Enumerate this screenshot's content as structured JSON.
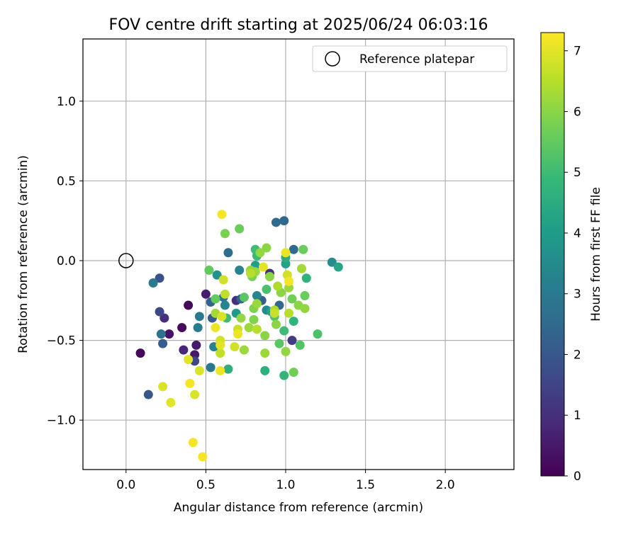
{
  "chart_data": {
    "type": "scatter",
    "title": "FOV centre drift starting at 2025/06/24 06:03:16",
    "xlabel": "Angular distance from reference (arcmin)",
    "ylabel": "Rotation from reference (arcmin)",
    "xlim": [
      -0.27,
      2.43
    ],
    "ylim": [
      -1.31,
      1.39
    ],
    "xticks": [
      "0.0",
      "0.5",
      "1.0",
      "1.5",
      "2.0"
    ],
    "xtick_values": [
      0.0,
      0.5,
      1.0,
      1.5,
      2.0
    ],
    "yticks": [
      "1.0",
      "0.5",
      "0.0",
      "−0.5",
      "−1.0"
    ],
    "ytick_values": [
      1.0,
      0.5,
      0.0,
      -0.5,
      -1.0
    ],
    "grid": true,
    "legend": {
      "label": "Reference platepar",
      "placement": "top-right"
    },
    "reference_point": {
      "x": 0.0,
      "y": 0.0
    },
    "colorbar": {
      "label": "Hours from first FF file",
      "range": [
        0,
        7.3
      ],
      "ticks": [
        "0",
        "1",
        "2",
        "3",
        "4",
        "5",
        "6",
        "7"
      ],
      "tick_values": [
        0,
        1,
        2,
        3,
        4,
        5,
        6,
        7
      ],
      "colormap": [
        "#440154",
        "#482878",
        "#3e4989",
        "#31688e",
        "#26828e",
        "#1f9e89",
        "#35b779",
        "#6ece58",
        "#b5de2b",
        "#fde725"
      ]
    },
    "series": [
      {
        "points": [
          {
            "x": 0.09,
            "y": -0.58,
            "t": 0.1
          },
          {
            "x": 0.39,
            "y": -0.28,
            "t": 0.1
          },
          {
            "x": 0.35,
            "y": -0.42,
            "t": 0.2
          },
          {
            "x": 0.27,
            "y": -0.46,
            "t": 0.4
          },
          {
            "x": 0.43,
            "y": -0.59,
            "t": 0.5
          },
          {
            "x": 0.44,
            "y": -0.53,
            "t": 0.5
          },
          {
            "x": 0.5,
            "y": -0.21,
            "t": 0.6
          },
          {
            "x": 0.36,
            "y": -0.56,
            "t": 0.8
          },
          {
            "x": 0.24,
            "y": -0.36,
            "t": 1.0
          },
          {
            "x": 0.69,
            "y": -0.25,
            "t": 1.0
          },
          {
            "x": 0.9,
            "y": -0.08,
            "t": 1.0
          },
          {
            "x": 1.04,
            "y": -0.5,
            "t": 1.3
          },
          {
            "x": 0.21,
            "y": -0.32,
            "t": 1.6
          },
          {
            "x": 0.43,
            "y": -0.63,
            "t": 1.6
          },
          {
            "x": 0.21,
            "y": -0.11,
            "t": 1.9
          },
          {
            "x": 0.14,
            "y": -0.84,
            "t": 2.0
          },
          {
            "x": 0.23,
            "y": -0.52,
            "t": 2.1
          },
          {
            "x": 0.54,
            "y": -0.36,
            "t": 2.1
          },
          {
            "x": 0.85,
            "y": -0.25,
            "t": 2.2
          },
          {
            "x": 0.53,
            "y": -0.26,
            "t": 2.3
          },
          {
            "x": 0.72,
            "y": -0.24,
            "t": 2.3
          },
          {
            "x": 0.96,
            "y": -0.28,
            "t": 2.4
          },
          {
            "x": 0.99,
            "y": 0.25,
            "t": 2.4
          },
          {
            "x": 1.05,
            "y": 0.07,
            "t": 2.5
          },
          {
            "x": 0.94,
            "y": 0.24,
            "t": 2.5
          },
          {
            "x": 0.64,
            "y": 0.05,
            "t": 2.6
          },
          {
            "x": 0.22,
            "y": -0.46,
            "t": 2.8
          },
          {
            "x": 0.61,
            "y": -0.23,
            "t": 2.8
          },
          {
            "x": 0.53,
            "y": -0.67,
            "t": 2.9
          },
          {
            "x": 0.17,
            "y": -0.14,
            "t": 3.0
          },
          {
            "x": 0.46,
            "y": -0.35,
            "t": 3.0
          },
          {
            "x": 0.45,
            "y": -0.42,
            "t": 3.1
          },
          {
            "x": 0.55,
            "y": -0.54,
            "t": 3.2
          },
          {
            "x": 0.62,
            "y": -0.28,
            "t": 3.3
          },
          {
            "x": 0.71,
            "y": -0.06,
            "t": 3.3
          },
          {
            "x": 0.82,
            "y": -0.22,
            "t": 3.4
          },
          {
            "x": 0.88,
            "y": -0.31,
            "t": 3.5
          },
          {
            "x": 1.29,
            "y": -0.01,
            "t": 3.6
          },
          {
            "x": 0.57,
            "y": -0.09,
            "t": 3.7
          },
          {
            "x": 0.69,
            "y": -0.33,
            "t": 4.0
          },
          {
            "x": 0.81,
            "y": -0.03,
            "t": 4.1
          },
          {
            "x": 0.91,
            "y": -0.32,
            "t": 4.2
          },
          {
            "x": 1.0,
            "y": -0.02,
            "t": 4.2
          },
          {
            "x": 1.33,
            "y": -0.04,
            "t": 4.3
          },
          {
            "x": 1.0,
            "y": 0.02,
            "t": 4.5
          },
          {
            "x": 0.64,
            "y": -0.68,
            "t": 4.6
          },
          {
            "x": 0.87,
            "y": -0.69,
            "t": 4.6
          },
          {
            "x": 1.05,
            "y": -0.38,
            "t": 4.7
          },
          {
            "x": 1.13,
            "y": -0.11,
            "t": 4.7
          },
          {
            "x": 0.99,
            "y": -0.72,
            "t": 4.8
          },
          {
            "x": 0.82,
            "y": 0.03,
            "t": 4.9
          },
          {
            "x": 0.81,
            "y": 0.07,
            "t": 5.0
          },
          {
            "x": 0.99,
            "y": -0.44,
            "t": 5.0
          },
          {
            "x": 0.63,
            "y": -0.36,
            "t": 5.0
          },
          {
            "x": 1.2,
            "y": -0.46,
            "t": 5.2
          },
          {
            "x": 0.88,
            "y": -0.18,
            "t": 5.2
          },
          {
            "x": 1.09,
            "y": -0.53,
            "t": 5.3
          },
          {
            "x": 0.93,
            "y": -0.35,
            "t": 5.3
          },
          {
            "x": 0.96,
            "y": -0.52,
            "t": 5.4
          },
          {
            "x": 0.74,
            "y": -0.23,
            "t": 5.4
          },
          {
            "x": 0.56,
            "y": -0.24,
            "t": 5.5
          },
          {
            "x": 0.52,
            "y": -0.06,
            "t": 5.5
          },
          {
            "x": 0.71,
            "y": 0.2,
            "t": 5.6
          },
          {
            "x": 1.11,
            "y": 0.07,
            "t": 5.6
          },
          {
            "x": 1.12,
            "y": -0.22,
            "t": 5.6
          },
          {
            "x": 1.04,
            "y": -0.24,
            "t": 5.7
          },
          {
            "x": 1.05,
            "y": -0.7,
            "t": 5.7
          },
          {
            "x": 0.62,
            "y": 0.17,
            "t": 5.8
          },
          {
            "x": 0.79,
            "y": -0.1,
            "t": 5.8
          },
          {
            "x": 0.8,
            "y": -0.3,
            "t": 5.9
          },
          {
            "x": 0.8,
            "y": -0.37,
            "t": 5.9
          },
          {
            "x": 0.88,
            "y": 0.08,
            "t": 6.0
          },
          {
            "x": 0.9,
            "y": -0.1,
            "t": 6.0
          },
          {
            "x": 0.97,
            "y": -0.2,
            "t": 6.0
          },
          {
            "x": 1.08,
            "y": -0.28,
            "t": 6.0
          },
          {
            "x": 0.87,
            "y": -0.47,
            "t": 6.0
          },
          {
            "x": 0.94,
            "y": -0.4,
            "t": 6.0
          },
          {
            "x": 0.84,
            "y": 0.05,
            "t": 6.1
          },
          {
            "x": 0.78,
            "y": -0.06,
            "t": 6.1
          },
          {
            "x": 0.72,
            "y": -0.36,
            "t": 6.1
          },
          {
            "x": 1.12,
            "y": -0.3,
            "t": 6.1
          },
          {
            "x": 1.0,
            "y": -0.57,
            "t": 6.1
          },
          {
            "x": 0.81,
            "y": -0.07,
            "t": 6.2
          },
          {
            "x": 0.82,
            "y": -0.27,
            "t": 6.2
          },
          {
            "x": 0.77,
            "y": -0.42,
            "t": 6.2
          },
          {
            "x": 1.02,
            "y": -0.17,
            "t": 6.2
          },
          {
            "x": 0.74,
            "y": -0.56,
            "t": 6.2
          },
          {
            "x": 0.87,
            "y": -0.58,
            "t": 6.2
          },
          {
            "x": 1.1,
            "y": -0.05,
            "t": 6.3
          },
          {
            "x": 0.56,
            "y": -0.33,
            "t": 6.3
          },
          {
            "x": 0.93,
            "y": -0.31,
            "t": 6.4
          },
          {
            "x": 0.95,
            "y": -0.16,
            "t": 6.4
          },
          {
            "x": 0.78,
            "y": -0.08,
            "t": 6.5
          },
          {
            "x": 0.82,
            "y": -0.43,
            "t": 6.5
          },
          {
            "x": 1.02,
            "y": -0.33,
            "t": 6.5
          },
          {
            "x": 0.59,
            "y": -0.58,
            "t": 6.6
          },
          {
            "x": 0.62,
            "y": -0.21,
            "t": 6.6
          },
          {
            "x": 0.7,
            "y": -0.43,
            "t": 6.7
          },
          {
            "x": 0.93,
            "y": -0.33,
            "t": 6.7
          },
          {
            "x": 1.01,
            "y": -0.09,
            "t": 6.8
          },
          {
            "x": 0.59,
            "y": -0.5,
            "t": 6.8
          },
          {
            "x": 0.68,
            "y": -0.54,
            "t": 6.8
          },
          {
            "x": 0.61,
            "y": -0.12,
            "t": 6.8
          },
          {
            "x": 0.46,
            "y": -0.69,
            "t": 6.9
          },
          {
            "x": 0.23,
            "y": -0.79,
            "t": 6.9
          },
          {
            "x": 0.43,
            "y": -0.84,
            "t": 6.9
          },
          {
            "x": 0.6,
            "y": -0.35,
            "t": 6.9
          },
          {
            "x": 0.39,
            "y": -0.62,
            "t": 7.0
          },
          {
            "x": 0.28,
            "y": -0.89,
            "t": 7.0
          },
          {
            "x": 0.59,
            "y": -0.53,
            "t": 7.0
          },
          {
            "x": 0.86,
            "y": -0.04,
            "t": 7.0
          },
          {
            "x": 0.59,
            "y": -0.69,
            "t": 7.1
          },
          {
            "x": 0.56,
            "y": -0.42,
            "t": 7.1
          },
          {
            "x": 0.7,
            "y": -0.46,
            "t": 7.1
          },
          {
            "x": 1.0,
            "y": 0.05,
            "t": 7.1
          },
          {
            "x": 0.6,
            "y": 0.29,
            "t": 7.2
          },
          {
            "x": 0.4,
            "y": -0.77,
            "t": 7.2
          },
          {
            "x": 0.42,
            "y": -1.14,
            "t": 7.2
          },
          {
            "x": 0.48,
            "y": -1.23,
            "t": 7.2
          },
          {
            "x": 1.02,
            "y": -0.13,
            "t": 7.2
          }
        ]
      }
    ]
  }
}
